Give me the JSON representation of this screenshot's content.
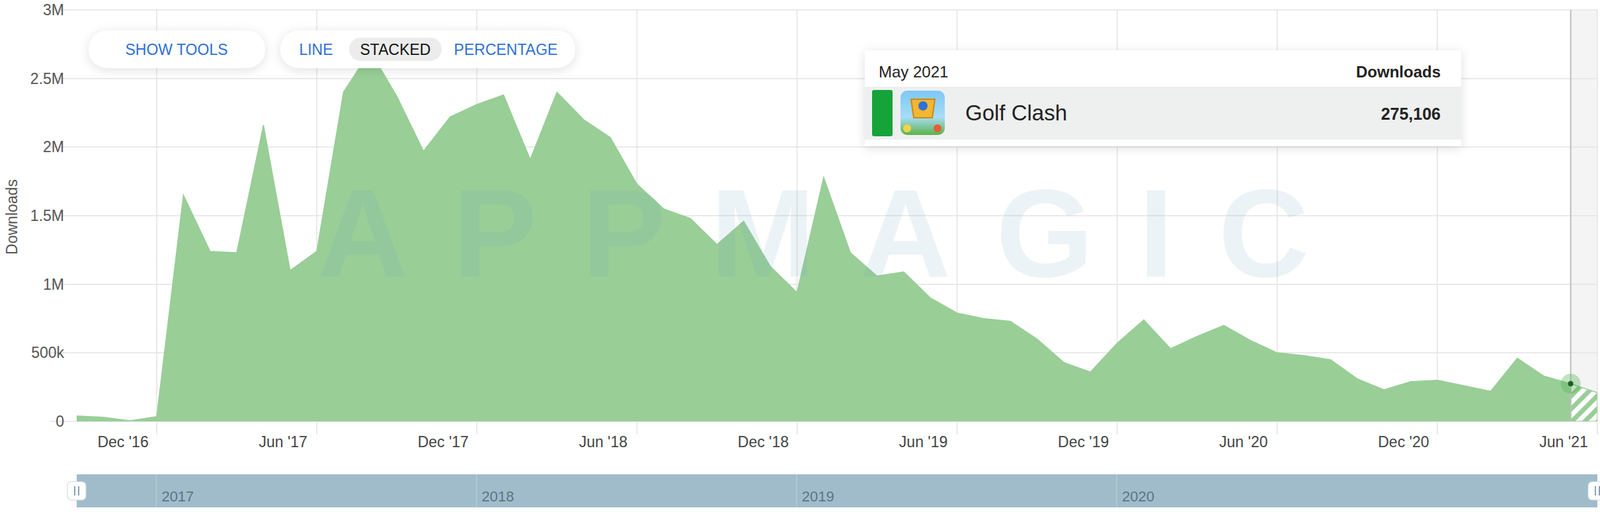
{
  "chart_data": {
    "type": "area",
    "y_label": "Downloads",
    "watermark": "APPMAGIC",
    "controls": {
      "tools": "SHOW TOOLS",
      "modes": [
        "LINE",
        "STACKED",
        "PERCENTAGE"
      ]
    },
    "stacked": true,
    "grid": true,
    "x": [
      "2016-09",
      "2016-10",
      "2016-11",
      "2016-12",
      "2017-01",
      "2017-02",
      "2017-03",
      "2017-04",
      "2017-05",
      "2017-06",
      "2017-07",
      "2017-08",
      "2017-09",
      "2017-10",
      "2017-11",
      "2017-12",
      "2018-01",
      "2018-02",
      "2018-03",
      "2018-04",
      "2018-05",
      "2018-06",
      "2018-07",
      "2018-08",
      "2018-09",
      "2018-10",
      "2018-11",
      "2018-12",
      "2019-01",
      "2019-02",
      "2019-03",
      "2019-04",
      "2019-05",
      "2019-06",
      "2019-07",
      "2019-08",
      "2019-09",
      "2019-10",
      "2019-11",
      "2019-12",
      "2020-01",
      "2020-02",
      "2020-03",
      "2020-04",
      "2020-05",
      "2020-06",
      "2020-07",
      "2020-08",
      "2020-09",
      "2020-10",
      "2020-11",
      "2020-12",
      "2021-01",
      "2021-02",
      "2021-03",
      "2021-04",
      "2021-05",
      "2021-06"
    ],
    "series": [
      {
        "name": "Golf Clash",
        "color": "#99ce97",
        "values": [
          40000,
          30000,
          5000,
          35000,
          1650000,
          1240000,
          1230000,
          2160000,
          1100000,
          1240000,
          2400000,
          2700000,
          2370000,
          1970000,
          2220000,
          2310000,
          2380000,
          1910000,
          2400000,
          2200000,
          2070000,
          1730000,
          1550000,
          1480000,
          1290000,
          1460000,
          1130000,
          940000,
          1780000,
          1230000,
          1060000,
          1090000,
          900000,
          790000,
          750000,
          730000,
          600000,
          430000,
          360000,
          570000,
          740000,
          530000,
          620000,
          700000,
          590000,
          500000,
          480000,
          450000,
          310000,
          230000,
          290000,
          300000,
          260000,
          220000,
          460000,
          330000,
          275106,
          210000
        ]
      }
    ],
    "xlim": [
      "2016-09",
      "2021-06"
    ],
    "xticks": [
      {
        "value": "2016-12",
        "label": "Dec '16"
      },
      {
        "value": "2017-06",
        "label": "Jun '17"
      },
      {
        "value": "2017-12",
        "label": "Dec '17"
      },
      {
        "value": "2018-06",
        "label": "Jun '18"
      },
      {
        "value": "2018-12",
        "label": "Dec '18"
      },
      {
        "value": "2019-06",
        "label": "Jun '19"
      },
      {
        "value": "2019-12",
        "label": "Dec '19"
      },
      {
        "value": "2020-06",
        "label": "Jun '20"
      },
      {
        "value": "2020-12",
        "label": "Dec '20"
      },
      {
        "value": "2021-06",
        "label": "Jun '21"
      }
    ],
    "ylim": [
      0,
      3000000
    ],
    "yticks": [
      0,
      {
        "value": 500000,
        "label": "500k"
      },
      {
        "value": 1000000,
        "label": "1M"
      },
      {
        "value": 1500000,
        "label": "1.5M"
      },
      {
        "value": 2000000,
        "label": "2M"
      },
      {
        "value": 2500000,
        "label": "2.5M"
      },
      {
        "value": 3000000,
        "label": "3M"
      }
    ],
    "tooltip": {
      "x": "2021-05",
      "title": "May 2021",
      "header": "Downloads",
      "value_label": "275,106"
    },
    "navigator": [
      "2017",
      "2018",
      "2019",
      "2020"
    ]
  }
}
